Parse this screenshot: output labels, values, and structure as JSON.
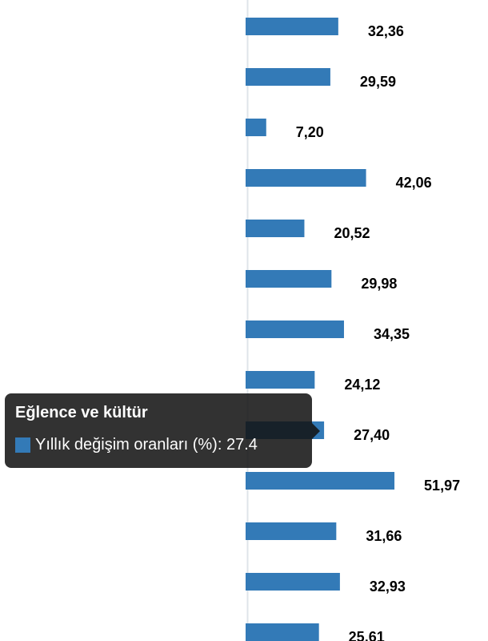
{
  "chart_data": {
    "type": "bar",
    "orientation": "horizontal",
    "values": [
      32.36,
      29.59,
      7.2,
      42.06,
      20.52,
      29.98,
      34.35,
      24.12,
      27.4,
      51.97,
      31.66,
      32.93,
      25.61
    ],
    "data_labels": [
      "32,36",
      "29,59",
      "7,20",
      "42,06",
      "20,52",
      "29,98",
      "34,35",
      "24,12",
      "27,40",
      "51,97",
      "31,66",
      "32,93",
      "25,61"
    ],
    "series": [
      {
        "name": "Yıllık değişim oranları (%)",
        "color": "#337ab7"
      }
    ],
    "grid": false
  },
  "tooltip": {
    "title": "Eğlence ve kültür",
    "label": "Yıllık değişim oranları (%): 27.4",
    "highlighted_index": 8
  },
  "colors": {
    "bar": "#337ab7",
    "axis": "#dfe4ea",
    "label": "#000000"
  }
}
